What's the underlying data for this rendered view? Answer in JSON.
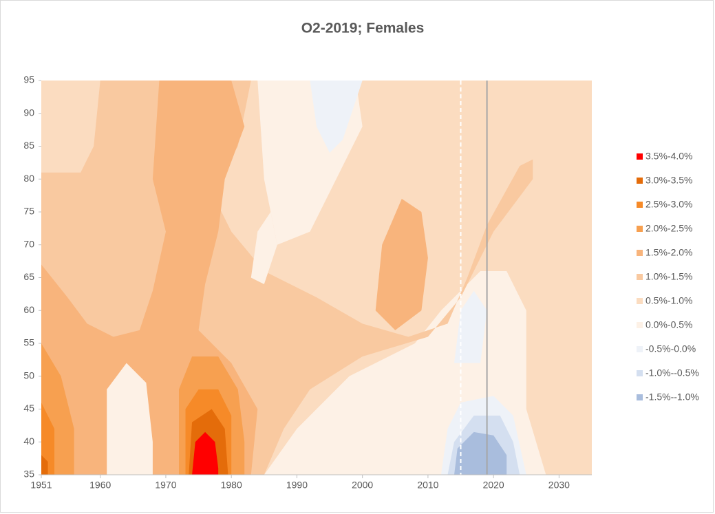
{
  "chart_data": {
    "type": "contour",
    "title": "O2-2019; Females",
    "xlim": [
      1951,
      2035
    ],
    "ylim": [
      35,
      95
    ],
    "xticks": [
      1951,
      1960,
      1970,
      1980,
      1990,
      2000,
      2010,
      2020,
      2030
    ],
    "yticks": [
      35,
      40,
      45,
      50,
      55,
      60,
      65,
      70,
      75,
      80,
      85,
      90,
      95
    ],
    "levels": [
      {
        "label": "3.5%-4.0%",
        "color": "#ff0000"
      },
      {
        "label": "3.0%-3.5%",
        "color": "#e46c0a"
      },
      {
        "label": "2.5%-3.0%",
        "color": "#f68a28"
      },
      {
        "label": "2.0%-2.5%",
        "color": "#f7a050"
      },
      {
        "label": "1.5%-2.0%",
        "color": "#f8b47c"
      },
      {
        "label": "1.0%-1.5%",
        "color": "#f9c9a0"
      },
      {
        "label": "0.5%-1.0%",
        "color": "#fbdcc0"
      },
      {
        "label": "0.0%-0.5%",
        "color": "#fdf1e6"
      },
      {
        "label": "-0.5%-0.0%",
        "color": "#eef2f8"
      },
      {
        "label": "-1.0%--0.5%",
        "color": "#d4dff0"
      },
      {
        "label": "-1.5%--1.0%",
        "color": "#a9bddd"
      }
    ],
    "regions": [
      {
        "level": 6,
        "x": [
          1951,
          1951,
          2035,
          2035
        ],
        "y": [
          35,
          95,
          95,
          35
        ]
      },
      {
        "level": 7,
        "x": [
          1984,
          1999,
          2000,
          1996,
          1992,
          1987,
          1985
        ],
        "y": [
          95,
          95,
          88,
          80,
          72,
          70,
          80
        ]
      },
      {
        "level": 7,
        "x": [
          1985,
          1990,
          1998,
          2008,
          2012,
          2018,
          2022,
          2025,
          2025,
          2028
        ],
        "y": [
          35,
          42,
          50,
          55,
          60,
          66,
          66,
          60,
          45,
          35
        ]
      },
      {
        "level": 5,
        "x": [
          1951,
          1951,
          1983,
          1981,
          1977,
          1980,
          1985,
          1993,
          2000,
          2007,
          2013,
          2016,
          2019,
          2024,
          2026,
          2026,
          2020,
          2015,
          2010,
          2000,
          1992,
          1988,
          1985
        ],
        "y": [
          35,
          95,
          95,
          85,
          78,
          72,
          66,
          62,
          58,
          56,
          58,
          65,
          73,
          82,
          83,
          80,
          72,
          62,
          56,
          53,
          48,
          42,
          35
        ]
      },
      {
        "level": 6,
        "x": [
          1951,
          1951,
          1960,
          1959,
          1957
        ],
        "y": [
          81,
          95,
          95,
          85,
          81
        ]
      },
      {
        "level": 4,
        "x": [
          1951,
          1951,
          1955,
          1958,
          1962,
          1966,
          1968,
          1970,
          1968,
          1969,
          1980,
          1982,
          1979,
          1978,
          1976,
          1975,
          1980,
          1984,
          1983
        ],
        "y": [
          35,
          67,
          62,
          58,
          56,
          57,
          63,
          72,
          80,
          95,
          95,
          88,
          80,
          72,
          64,
          57,
          52,
          45,
          35
        ]
      },
      {
        "level": 4,
        "x": [
          2002,
          2003,
          2006,
          2009,
          2010,
          2009,
          2005
        ],
        "y": [
          60,
          70,
          77,
          75,
          68,
          60,
          57
        ]
      },
      {
        "level": 3,
        "x": [
          1951,
          1951,
          1954,
          1956,
          1956
        ],
        "y": [
          35,
          55,
          50,
          42,
          35
        ]
      },
      {
        "level": 3,
        "x": [
          1972,
          1972,
          1974,
          1978,
          1981,
          1982,
          1982
        ],
        "y": [
          35,
          48,
          53,
          53,
          48,
          40,
          35
        ]
      },
      {
        "level": 2,
        "x": [
          1951,
          1951,
          1953,
          1953
        ],
        "y": [
          35,
          46,
          42,
          35
        ]
      },
      {
        "level": 2,
        "x": [
          1973,
          1973,
          1975,
          1978,
          1980,
          1980
        ],
        "y": [
          35,
          45,
          48,
          48,
          44,
          35
        ]
      },
      {
        "level": 1,
        "x": [
          1951,
          1951,
          1952,
          1952
        ],
        "y": [
          35,
          38,
          37,
          35
        ]
      },
      {
        "level": 1,
        "x": [
          1973.5,
          1974,
          1977,
          1979,
          1979.5
        ],
        "y": [
          35,
          43,
          45,
          42,
          35
        ]
      },
      {
        "level": 0,
        "x": [
          1974,
          1974.5,
          1976,
          1977.5,
          1978,
          1978
        ],
        "y": [
          35,
          40,
          41.5,
          40,
          36,
          35
        ]
      },
      {
        "level": 7,
        "x": [
          1961,
          1961,
          1964,
          1967,
          1968,
          1968
        ],
        "y": [
          35,
          48,
          52,
          49,
          40,
          35
        ]
      },
      {
        "level": 7,
        "x": [
          1983,
          1984,
          1986,
          1987,
          1985
        ],
        "y": [
          65,
          72,
          75,
          70,
          64
        ]
      },
      {
        "level": 8,
        "x": [
          1992,
          1993,
          1995,
          1997,
          2000
        ],
        "y": [
          95,
          88,
          84,
          86,
          95
        ]
      },
      {
        "level": 8,
        "x": [
          2012,
          2013,
          2015,
          2020,
          2023,
          2025
        ],
        "y": [
          35,
          42,
          46,
          47,
          44,
          35
        ]
      },
      {
        "level": 8,
        "x": [
          2014,
          2015,
          2017,
          2019,
          2018
        ],
        "y": [
          52,
          60,
          63,
          60,
          52
        ]
      },
      {
        "level": 9,
        "x": [
          2013,
          2014,
          2017,
          2021,
          2023,
          2024
        ],
        "y": [
          35,
          40,
          44,
          44,
          40,
          35
        ]
      },
      {
        "level": 10,
        "x": [
          2014,
          2014.5,
          2017,
          2020,
          2022,
          2022
        ],
        "y": [
          35,
          39,
          41.5,
          41,
          38,
          35
        ]
      }
    ],
    "reference_lines": [
      {
        "x": 2015,
        "color": "#ffffff",
        "dashed": true
      },
      {
        "x": 2019,
        "color": "#a6a6a6",
        "dashed": false
      }
    ]
  }
}
